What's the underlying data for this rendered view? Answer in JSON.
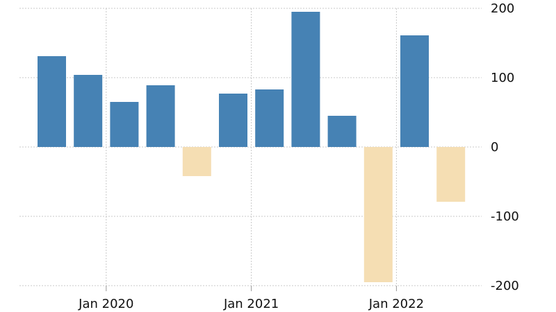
{
  "chart_data": {
    "type": "bar",
    "title": "",
    "xlabel": "",
    "ylabel": "",
    "ylim": [
      -200,
      200
    ],
    "y_ticks": [
      200,
      100,
      0,
      -100,
      -200
    ],
    "y_tick_labels": [
      "200",
      "100",
      "0",
      "-100",
      "-200"
    ],
    "x_tick_labels": [
      "Jan 2020",
      "Jan 2021",
      "Jan 2022"
    ],
    "x_tick_after_bar_index": [
      1,
      5,
      9
    ],
    "grid": true,
    "y_axis_position": "right",
    "colors": {
      "positive": "#4682b4",
      "negative": "#f5deb3",
      "grid": "#c8c8c8"
    },
    "values": [
      131,
      104,
      65,
      89,
      -42,
      77,
      83,
      195,
      45,
      -195,
      161,
      -79
    ]
  }
}
